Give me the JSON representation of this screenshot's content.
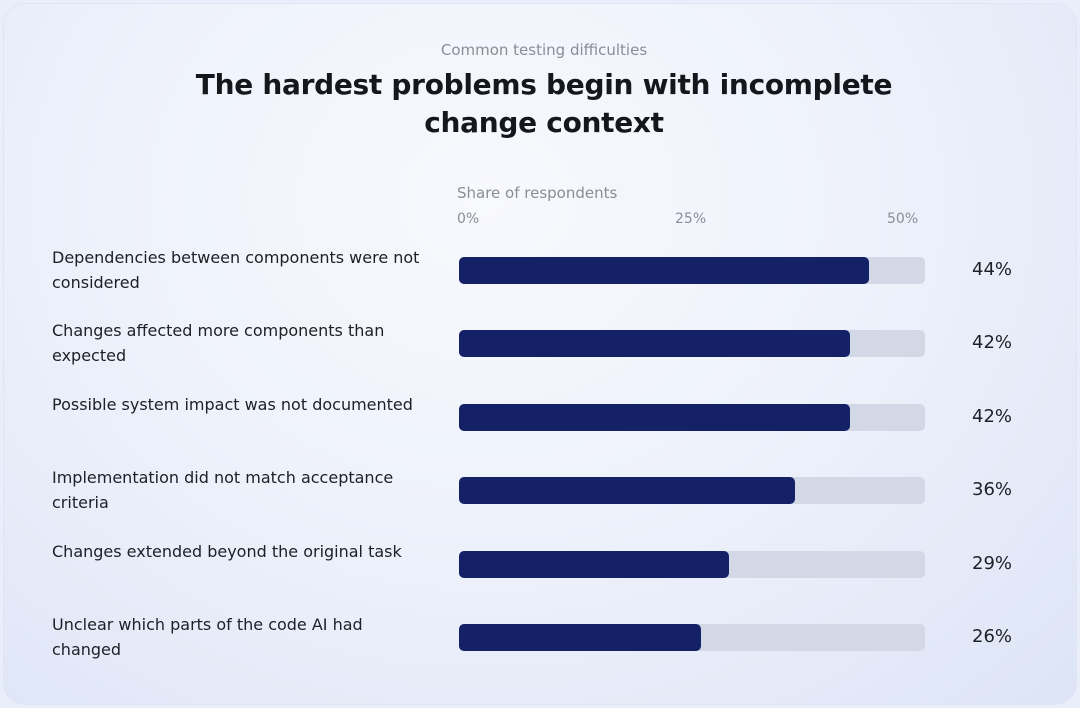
{
  "chart_data": {
    "type": "bar",
    "orientation": "horizontal",
    "subtitle": "Common testing difficulties",
    "title": "The hardest problems begin with incomplete change context",
    "xlabel": "Share of respondents",
    "xlim": [
      0,
      50
    ],
    "ticks": [
      "0%",
      "25%",
      "50%"
    ],
    "categories": [
      "Dependencies between components were not considered",
      "Changes affected more components than expected",
      "Possible system impact was not documented",
      "Implementation did not match acceptance criteria",
      "Changes extended beyond the original task",
      "Unclear which parts of the code AI had changed"
    ],
    "values": [
      44,
      42,
      42,
      36,
      29,
      26
    ],
    "value_labels": [
      "44%",
      "42%",
      "42%",
      "36%",
      "29%",
      "26%"
    ],
    "bar_color": "#142166",
    "track_color": "#d3d8e6"
  }
}
